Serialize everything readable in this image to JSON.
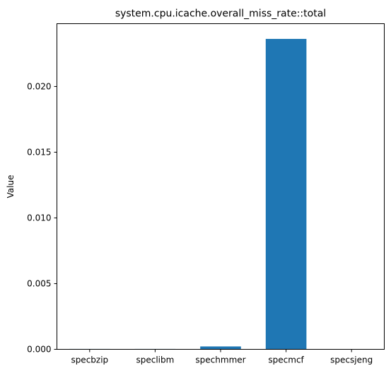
{
  "chart_data": {
    "type": "bar",
    "title": "system.cpu.icache.overall_miss_rate::total",
    "xlabel": "",
    "ylabel": "Value",
    "categories": [
      "specbzip",
      "speclibm",
      "spechmmer",
      "specmcf",
      "specsjeng"
    ],
    "values": [
      3e-05,
      3e-05,
      0.00022,
      0.02362,
      0.0
    ],
    "ylim": [
      0,
      0.02478
    ],
    "yticks": [
      0.0,
      0.005,
      0.01,
      0.015,
      0.02
    ],
    "ytick_labels": [
      "0.000",
      "0.005",
      "0.010",
      "0.015",
      "0.020"
    ],
    "bar_color": "#1f77b4",
    "grid": false,
    "legend": "none"
  }
}
